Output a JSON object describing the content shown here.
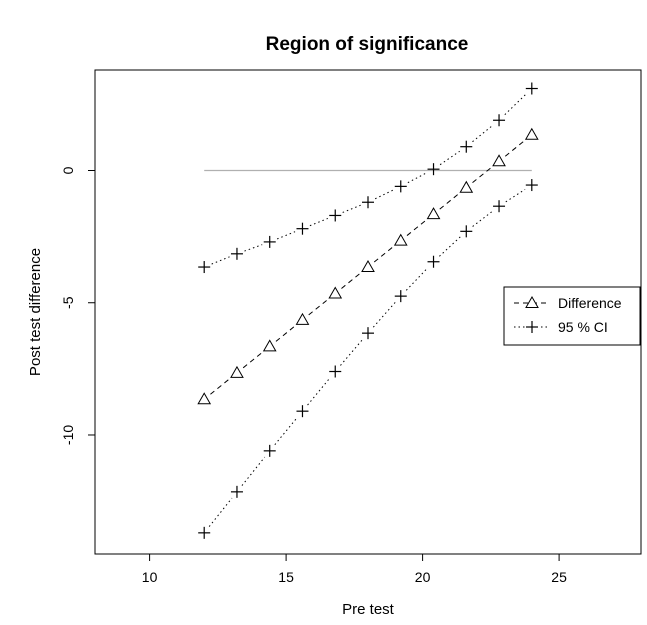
{
  "chart_data": {
    "type": "line",
    "title": "Region of significance",
    "xlabel": "Pre test",
    "ylabel": "Post test difference",
    "xlim": [
      8,
      28
    ],
    "ylim": [
      -14.5,
      3.8
    ],
    "x_ticks": [
      10,
      15,
      20,
      25
    ],
    "y_ticks": [
      0,
      -5,
      -10
    ],
    "x_tick_labels": [
      "10",
      "15",
      "20",
      "25"
    ],
    "y_tick_labels": [
      "0",
      "-5",
      "-10"
    ],
    "grid": false,
    "legend_position": "right",
    "reference_line": {
      "y": 0,
      "x_from": 12,
      "x_to": 24,
      "color": "#b0b0b0"
    },
    "x": [
      12,
      13.2,
      14.4,
      15.6,
      16.8,
      18,
      19.2,
      20.4,
      21.6,
      22.8,
      24
    ],
    "series": [
      {
        "name": "Difference",
        "marker": "triangle",
        "linestyle": "dashed",
        "values": [
          -8.65,
          -7.65,
          -6.65,
          -5.65,
          -4.65,
          -3.65,
          -2.65,
          -1.65,
          -0.65,
          0.35,
          1.35
        ]
      },
      {
        "name": "95 % CI",
        "marker": "plus",
        "linestyle": "dotted",
        "legend": true,
        "values": [
          -3.65,
          -3.15,
          -2.7,
          -2.2,
          -1.7,
          -1.2,
          -0.6,
          0.05,
          0.9,
          1.9,
          3.1
        ]
      },
      {
        "name": "",
        "marker": "plus",
        "linestyle": "dotted",
        "legend": false,
        "values": [
          -13.7,
          -12.15,
          -10.6,
          -9.1,
          -7.6,
          -6.15,
          -4.75,
          -3.45,
          -2.3,
          -1.35,
          -0.55
        ]
      }
    ]
  }
}
